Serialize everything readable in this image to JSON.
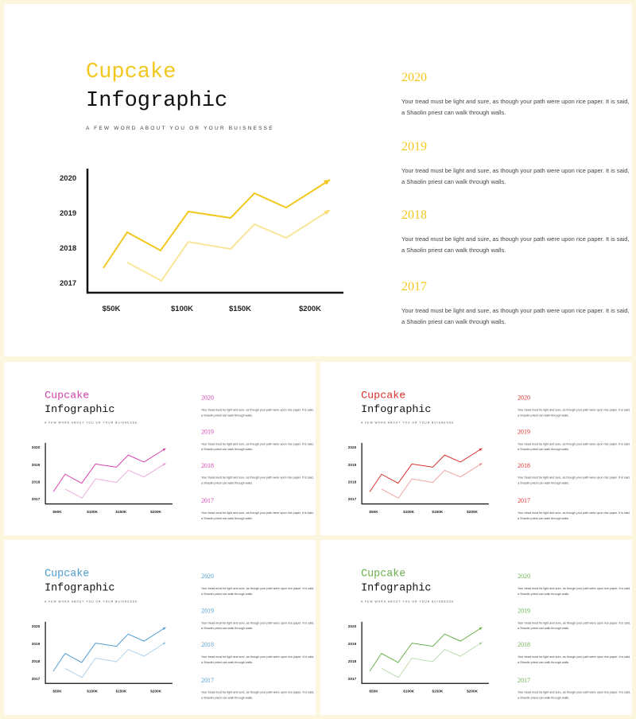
{
  "title_word_1": "Cupcake",
  "title_word_2": "Infographic",
  "tagline": "A FEW WORD ABOUT YOU OR YOUR BUISNESSE",
  "y_axis_labels": [
    "2020",
    "2019",
    "2018",
    "2017"
  ],
  "x_axis_labels": [
    "$50K",
    "$100K",
    "$150K",
    "$200K"
  ],
  "items": [
    {
      "year": "2020",
      "lines": [
        "Your tread must be light and sure, as though your path were upon rice paper. It is said,",
        "a Shaolin priest can walk through walls."
      ]
    },
    {
      "year": "2019",
      "lines": [
        "Your tread must be light and sure, as though your path were upon rice paper. It is said,",
        "a Shaolin priest can walk through walls."
      ]
    },
    {
      "year": "2018",
      "lines": [
        "Your tread must be light and sure, as though your path were upon rice paper. It is said,",
        "a Shaolin priest can walk through walls."
      ]
    },
    {
      "year": "2017",
      "lines": [
        "Your tread must be light and sure, as though your path were upon rice paper. It is said,",
        "a Shaolin priest can walk through walls."
      ]
    }
  ],
  "slide_colors": [
    "#f2c81e",
    "#d444b0",
    "#d9302c",
    "#4f9bd0",
    "#6ab04c"
  ]
}
